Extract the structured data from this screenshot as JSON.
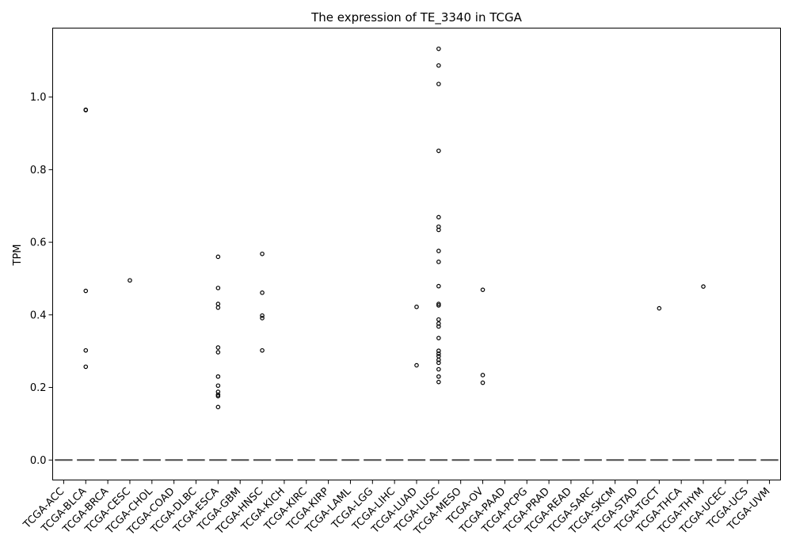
{
  "chart_data": {
    "type": "box",
    "title": "The expression of TE_3340 in TCGA",
    "xlabel": "",
    "ylabel": "TPM",
    "ylim": [
      -0.055,
      1.19
    ],
    "yticks": [
      0.0,
      0.2,
      0.4,
      0.6,
      0.8,
      1.0
    ],
    "ytick_labels": [
      "0.0",
      "0.2",
      "0.4",
      "0.6",
      "0.8",
      "1.0"
    ],
    "grid": false,
    "categories": [
      "TCGA-ACC",
      "TCGA-BLCA",
      "TCGA-BRCA",
      "TCGA-CESC",
      "TCGA-CHOL",
      "TCGA-COAD",
      "TCGA-DLBC",
      "TCGA-ESCA",
      "TCGA-GBM",
      "TCGA-HNSC",
      "TCGA-KICH",
      "TCGA-KIRC",
      "TCGA-KIRP",
      "TCGA-LAML",
      "TCGA-LGG",
      "TCGA-LIHC",
      "TCGA-LUAD",
      "TCGA-LUSC",
      "TCGA-MESO",
      "TCGA-OV",
      "TCGA-PAAD",
      "TCGA-PCPG",
      "TCGA-PRAD",
      "TCGA-READ",
      "TCGA-SARC",
      "TCGA-SKCM",
      "TCGA-STAD",
      "TCGA-TGCT",
      "TCGA-THCA",
      "TCGA-THYM",
      "TCGA-UCEC",
      "TCGA-UCS",
      "TCGA-UVM"
    ],
    "median": [
      0,
      0,
      0,
      0,
      0,
      0,
      0,
      0,
      0,
      0,
      0,
      0,
      0,
      0,
      0,
      0,
      0,
      0,
      0,
      0,
      0,
      0,
      0,
      0,
      0,
      0,
      0,
      0,
      0,
      0,
      0,
      0,
      0
    ],
    "outliers": [
      [],
      [
        0.965,
        0.964,
        0.466,
        0.302,
        0.257
      ],
      [],
      [
        0.495
      ],
      [],
      [],
      [],
      [
        0.56,
        0.474,
        0.43,
        0.42,
        0.31,
        0.297,
        0.23,
        0.205,
        0.188,
        0.18,
        0.176,
        0.146
      ],
      [],
      [
        0.568,
        0.461,
        0.398,
        0.391,
        0.302
      ],
      [],
      [],
      [],
      [],
      [],
      [],
      [
        0.422,
        0.261
      ],
      [
        1.133,
        1.087,
        1.036,
        0.852,
        0.669,
        0.643,
        0.634,
        0.576,
        0.546,
        0.479,
        0.43,
        0.426,
        0.387,
        0.376,
        0.368,
        0.336,
        0.301,
        0.293,
        0.286,
        0.276,
        0.268,
        0.25,
        0.23,
        0.215
      ],
      [],
      [
        0.469,
        0.234,
        0.213
      ],
      [],
      [],
      [],
      [],
      [],
      [],
      [],
      [
        0.418
      ],
      [],
      [
        0.478
      ],
      [],
      [],
      []
    ]
  }
}
